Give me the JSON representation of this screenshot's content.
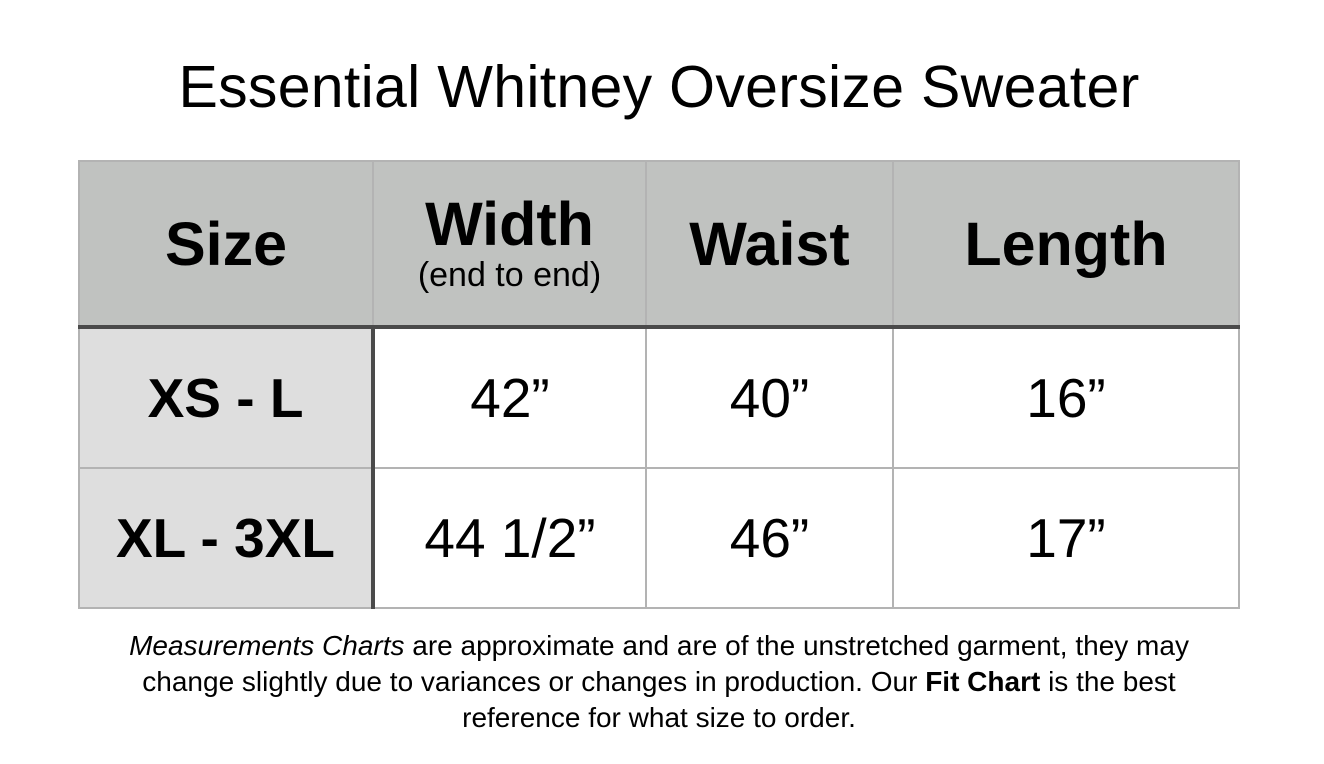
{
  "title": "Essential Whitney Oversize Sweater",
  "table": {
    "headers": {
      "size": "Size",
      "width": "Width",
      "width_sub": "(end to end)",
      "waist": "Waist",
      "length": "Length"
    },
    "rows": [
      {
        "size": "XS - L",
        "width": "42”",
        "waist": "40”",
        "length": "16”"
      },
      {
        "size": "XL - 3XL",
        "width": "44 1/2”",
        "waist": "46”",
        "length": "17”"
      }
    ]
  },
  "note": {
    "italic_lead": "Measurements Charts",
    "part1": " are approximate and are of the unstretched garment, they may change slightly due to variances or changes in production. Our ",
    "bold_link": "Fit Chart",
    "part2": " is the best reference for what size to order."
  },
  "colors": {
    "header_bg": "#c0c2c0",
    "size_col_bg": "#dedede",
    "grid_line": "#b3b3b3",
    "divider": "#4a4a4a"
  }
}
